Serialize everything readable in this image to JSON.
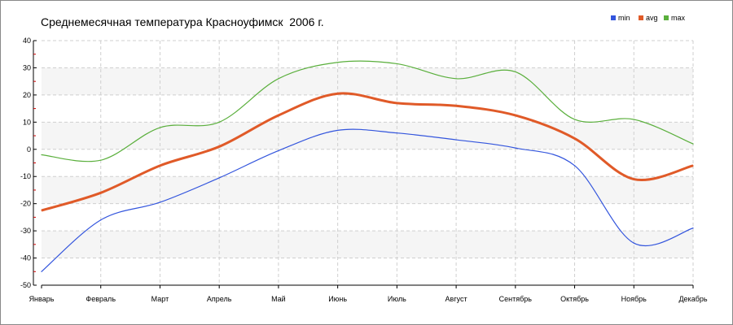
{
  "chart_data": {
    "type": "line",
    "title": "Среднемесячная температура Красноуфимск  2006 г.",
    "categories": [
      "Январь",
      "Февраль",
      "Март",
      "Апрель",
      "Май",
      "Июнь",
      "Июль",
      "Август",
      "Сентябрь",
      "Октябрь",
      "Ноябрь",
      "Декабрь"
    ],
    "ylim": [
      -50,
      40
    ],
    "yticks": [
      40,
      30,
      20,
      10,
      0,
      -10,
      -20,
      -30,
      -40,
      -50
    ],
    "grid": true,
    "legend_position": "top-right",
    "series": [
      {
        "name": "min",
        "color": "#3355dd",
        "values": [
          -45,
          -26,
          -19.5,
          -10.5,
          -0.5,
          7,
          6,
          3.5,
          0.5,
          -6,
          -34.5,
          -29
        ]
      },
      {
        "name": "avg",
        "color": "#e05a28",
        "values": [
          -22.5,
          -16,
          -6,
          1,
          12.5,
          20.5,
          17,
          16,
          12.5,
          4,
          -11,
          -6
        ]
      },
      {
        "name": "max",
        "color": "#5aaf3c",
        "values": [
          -2,
          -4,
          8,
          10,
          26,
          32,
          31.5,
          26,
          28.5,
          11,
          11,
          2
        ]
      }
    ]
  }
}
